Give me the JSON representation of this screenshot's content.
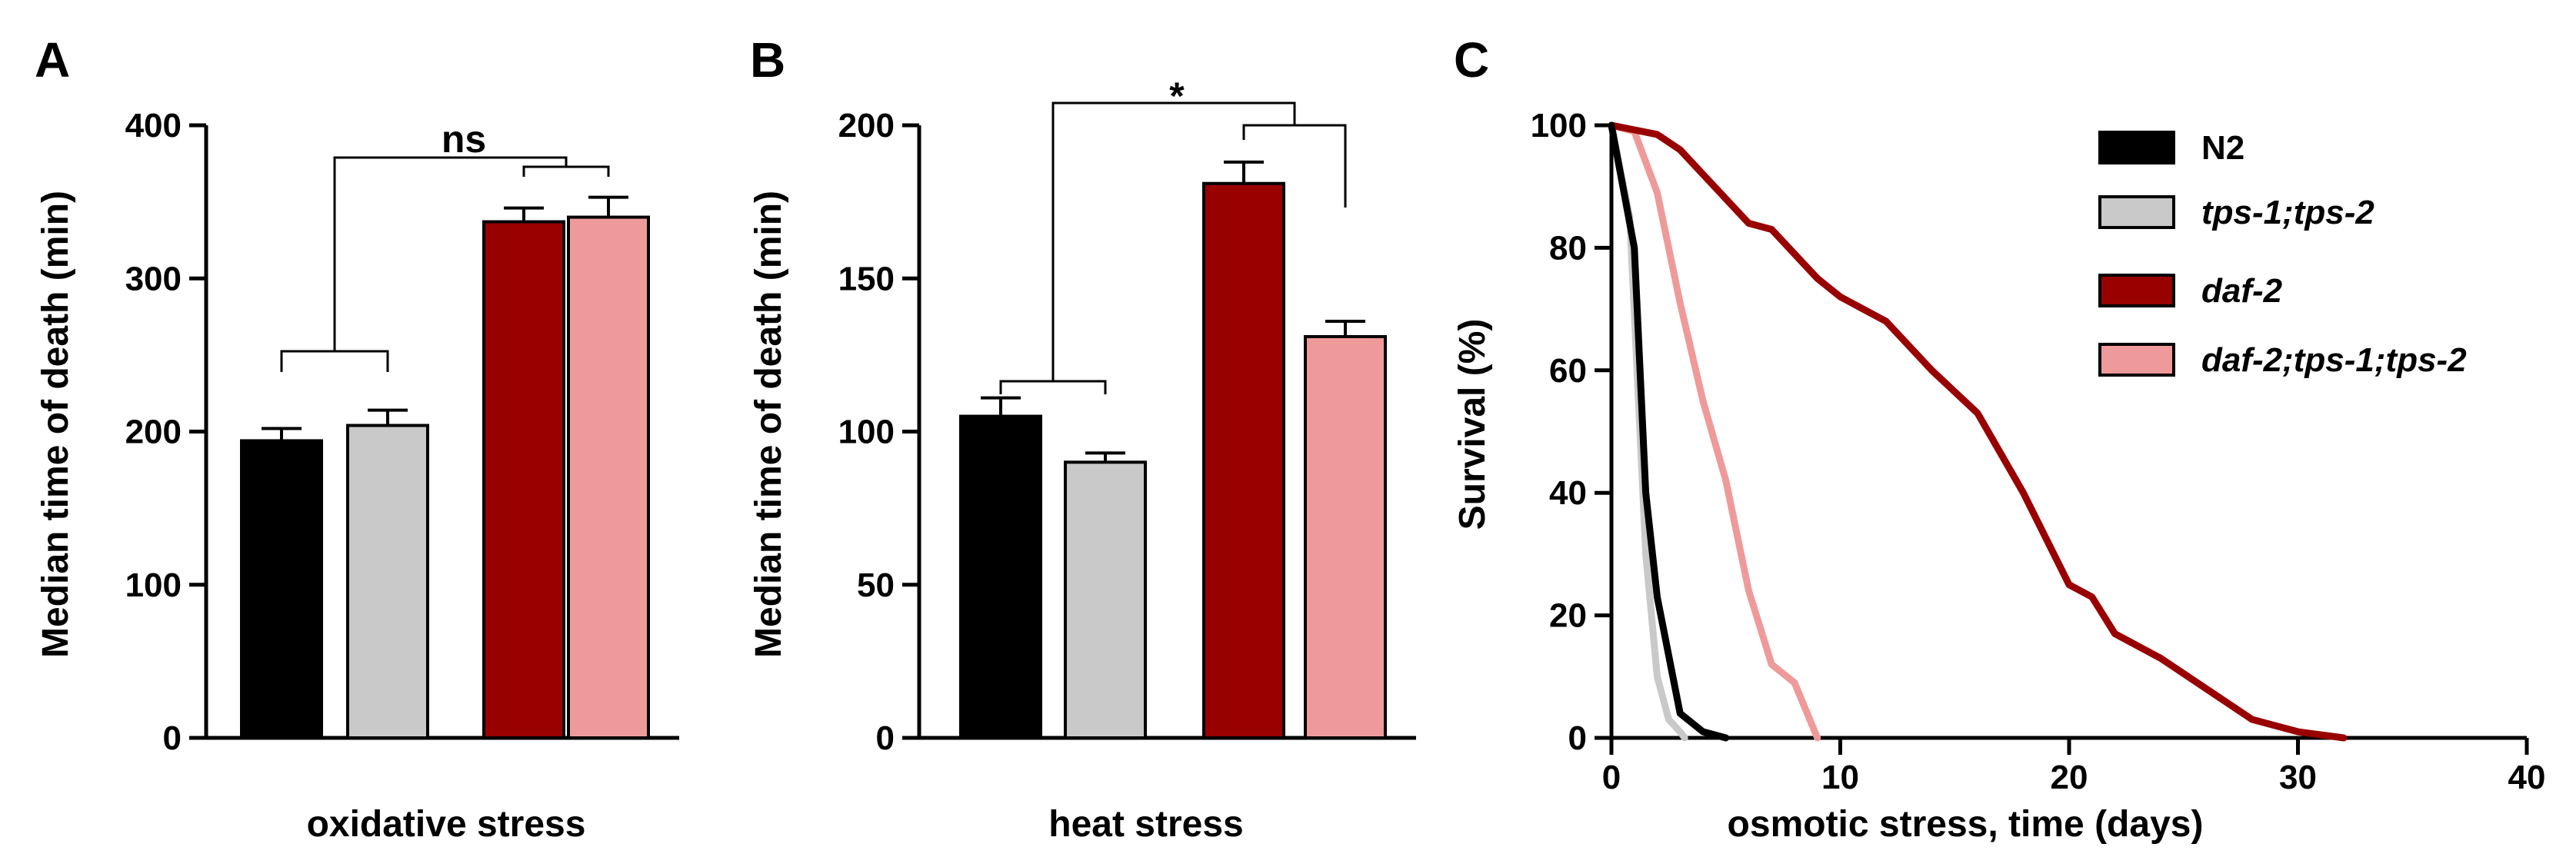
{
  "colors": {
    "N2": "#000000",
    "tps-1;tps-2": "#c9c9c9",
    "daf-2": "#990000",
    "daf-2;tps-1;tps-2": "#ef9a9a"
  },
  "chart_data": [
    {
      "panel": "A",
      "type": "bar",
      "xlabel": "oxidative stress",
      "ylabel": "Median time of death (min)",
      "ylim": [
        0,
        400
      ],
      "yticks": [
        "0",
        "100",
        "200",
        "300",
        "400"
      ],
      "categories": [
        "N2",
        "tps-1;tps-2",
        "daf-2",
        "daf-2;tps-1;tps-2"
      ],
      "values": [
        194,
        204,
        337,
        340
      ],
      "errors": [
        8,
        10,
        9,
        13
      ],
      "significance": [
        {
          "label": "ns"
        }
      ]
    },
    {
      "panel": "B",
      "type": "bar",
      "xlabel": "heat stress",
      "ylabel": "Median time of death (min)",
      "ylim": [
        0,
        200
      ],
      "yticks": [
        "0",
        "50",
        "100",
        "150",
        "200"
      ],
      "categories": [
        "N2",
        "tps-1;tps-2",
        "daf-2",
        "daf-2;tps-1;tps-2"
      ],
      "values": [
        105,
        90,
        181,
        131
      ],
      "errors": [
        6,
        3,
        7,
        5
      ],
      "significance": [
        {
          "label": "*"
        }
      ]
    },
    {
      "panel": "C",
      "type": "line",
      "xlabel": "osmotic stress, time (days)",
      "ylabel": "Survival (%)",
      "xlim": [
        0,
        40
      ],
      "ylim": [
        0,
        100
      ],
      "xticks": [
        "0",
        "10",
        "20",
        "30",
        "40"
      ],
      "yticks": [
        "0",
        "20",
        "40",
        "60",
        "80",
        "100"
      ],
      "legend_position": "top-right",
      "series": [
        {
          "name": "N2",
          "x": [
            0,
            1,
            1.5,
            2,
            3,
            4,
            5
          ],
          "y": [
            100,
            80,
            40,
            23,
            4,
            1,
            0
          ]
        },
        {
          "name": "tps-1;tps-2",
          "x": [
            0,
            0.8,
            1.5,
            2,
            2.5,
            3,
            3.2
          ],
          "y": [
            100,
            85,
            30,
            10,
            3,
            1,
            0
          ]
        },
        {
          "name": "daf-2",
          "x": [
            0,
            2,
            3,
            4,
            5,
            6,
            7,
            8,
            9,
            10,
            11,
            12,
            13,
            14,
            16,
            18,
            20,
            21,
            22,
            24,
            26,
            28,
            30,
            32
          ],
          "y": [
            100,
            98.5,
            96,
            92,
            88,
            84,
            83,
            79,
            75,
            72,
            70,
            68,
            64,
            60,
            53,
            40,
            25,
            23,
            17,
            13,
            8,
            3,
            1,
            0
          ]
        },
        {
          "name": "daf-2;tps-1;tps-2",
          "x": [
            0,
            1,
            2,
            3,
            4,
            5,
            6,
            7,
            8,
            9
          ],
          "y": [
            100,
            99,
            89,
            71,
            55,
            42,
            24,
            12,
            9,
            0
          ]
        }
      ]
    }
  ],
  "panels": [
    {
      "letter": "A"
    },
    {
      "letter": "B"
    },
    {
      "letter": "C"
    }
  ]
}
